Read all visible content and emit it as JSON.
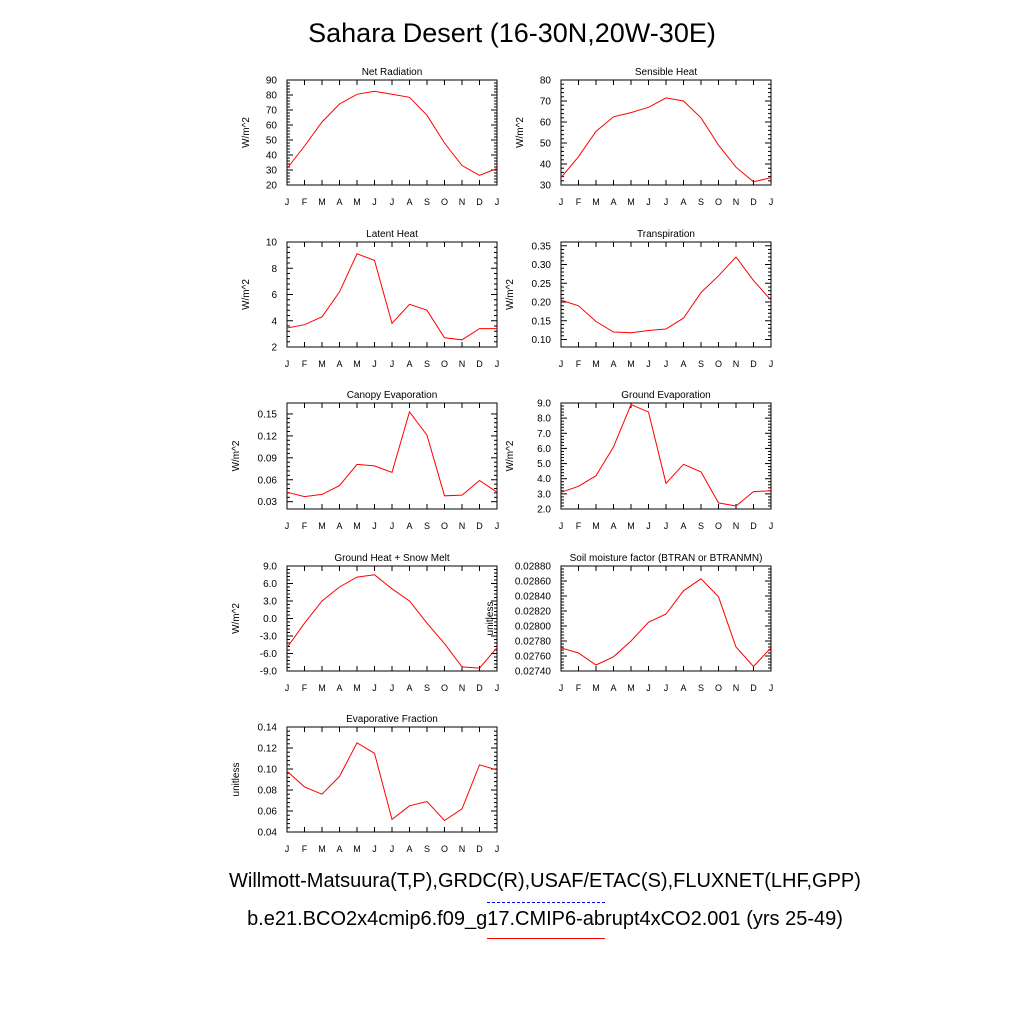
{
  "figure": {
    "title": "Sahara Desert (16-30N,20W-30E)",
    "legend": [
      {
        "label": "Willmott-Matsuura(T,P),GRDC(R),USAF/ETAC(S),FLUXNET(LHF,GPP)",
        "color": "#0000ff",
        "style": "dashed"
      },
      {
        "label": "b.e21.BCO2x4cmip6.f09_g17.CMIP6-abrupt4xCO2.001 (yrs 25-49)",
        "color": "#ff0000",
        "style": "solid"
      }
    ]
  },
  "chart_data": [
    {
      "type": "line",
      "title": "Net Radiation",
      "ylabel": "W/m^2",
      "categories": [
        "J",
        "F",
        "M",
        "A",
        "M",
        "J",
        "J",
        "A",
        "S",
        "O",
        "N",
        "D",
        "J"
      ],
      "ylim": [
        20,
        90
      ],
      "yticks": [
        "20",
        "30",
        "40",
        "50",
        "60",
        "70",
        "80",
        "90"
      ],
      "series": [
        {
          "color": "#ff0000",
          "values": [
            31,
            46,
            62,
            74,
            80.5,
            82.5,
            80.5,
            78.5,
            66.5,
            48,
            33,
            26.5,
            31
          ]
        }
      ]
    },
    {
      "type": "line",
      "title": "Sensible Heat",
      "ylabel": "W/m^2",
      "categories": [
        "J",
        "F",
        "M",
        "A",
        "M",
        "J",
        "J",
        "A",
        "S",
        "O",
        "N",
        "D",
        "J"
      ],
      "ylim": [
        30,
        80
      ],
      "yticks": [
        "30",
        "40",
        "50",
        "60",
        "70",
        "80"
      ],
      "series": [
        {
          "color": "#ff0000",
          "values": [
            33.5,
            43.5,
            55.5,
            62.5,
            64.5,
            67,
            71.5,
            70,
            62,
            49,
            38.5,
            31.5,
            33.5
          ]
        }
      ]
    },
    {
      "type": "line",
      "title": "Latent Heat",
      "ylabel": "W/m^2",
      "categories": [
        "J",
        "F",
        "M",
        "A",
        "M",
        "J",
        "J",
        "A",
        "S",
        "O",
        "N",
        "D",
        "J"
      ],
      "ylim": [
        2,
        10
      ],
      "yticks": [
        "2",
        "4",
        "6",
        "8",
        "10"
      ],
      "series": [
        {
          "color": "#ff0000",
          "values": [
            3.45,
            3.7,
            4.3,
            6.2,
            9.1,
            8.6,
            3.8,
            5.25,
            4.8,
            2.7,
            2.55,
            3.4,
            3.4
          ]
        }
      ]
    },
    {
      "type": "line",
      "title": "Transpiration",
      "ylabel": "W/m^2",
      "categories": [
        "J",
        "F",
        "M",
        "A",
        "M",
        "J",
        "J",
        "A",
        "S",
        "O",
        "N",
        "D",
        "J"
      ],
      "ylim": [
        0.08,
        0.36
      ],
      "yticks": [
        "0.10",
        "0.15",
        "0.20",
        "0.25",
        "0.30",
        "0.35"
      ],
      "series": [
        {
          "color": "#ff0000",
          "values": [
            0.205,
            0.19,
            0.148,
            0.12,
            0.118,
            0.124,
            0.128,
            0.157,
            0.225,
            0.27,
            0.32,
            0.257,
            0.205
          ]
        }
      ]
    },
    {
      "type": "line",
      "title": "Canopy Evaporation",
      "ylabel": "W/m^2",
      "categories": [
        "J",
        "F",
        "M",
        "A",
        "M",
        "J",
        "J",
        "A",
        "S",
        "O",
        "N",
        "D",
        "J"
      ],
      "ylim": [
        0.02,
        0.165
      ],
      "yticks": [
        "0.03",
        "0.06",
        "0.09",
        "0.12",
        "0.15"
      ],
      "series": [
        {
          "color": "#ff0000",
          "values": [
            0.043,
            0.037,
            0.04,
            0.052,
            0.081,
            0.079,
            0.07,
            0.153,
            0.121,
            0.038,
            0.039,
            0.059,
            0.043
          ]
        }
      ]
    },
    {
      "type": "line",
      "title": "Ground Evaporation",
      "ylabel": "W/m^2",
      "categories": [
        "J",
        "F",
        "M",
        "A",
        "M",
        "J",
        "J",
        "A",
        "S",
        "O",
        "N",
        "D",
        "J"
      ],
      "ylim": [
        2.0,
        9.0
      ],
      "yticks": [
        "2.0",
        "3.0",
        "4.0",
        "5.0",
        "6.0",
        "7.0",
        "8.0",
        "9.0"
      ],
      "series": [
        {
          "color": "#ff0000",
          "values": [
            3.1,
            3.5,
            4.2,
            6.1,
            8.9,
            8.4,
            3.7,
            4.95,
            4.45,
            2.4,
            2.2,
            3.15,
            3.2
          ]
        }
      ]
    },
    {
      "type": "line",
      "title": "Ground Heat + Snow Melt",
      "ylabel": "W/m^2",
      "categories": [
        "J",
        "F",
        "M",
        "A",
        "M",
        "J",
        "J",
        "A",
        "S",
        "O",
        "N",
        "D",
        "J"
      ],
      "ylim": [
        -9,
        9
      ],
      "yticks": [
        "-9.0",
        "-6.0",
        "-3.0",
        "0.0",
        "3.0",
        "6.0",
        "9.0"
      ],
      "series": [
        {
          "color": "#ff0000",
          "values": [
            -5,
            -0.8,
            3,
            5.4,
            7.1,
            7.5,
            5.1,
            3,
            -0.8,
            -4.3,
            -8.3,
            -8.5,
            -5
          ]
        }
      ]
    },
    {
      "type": "line",
      "title": "Soil moisture factor (BTRAN or BTRANMN)",
      "ylabel": "unitless",
      "categories": [
        "J",
        "F",
        "M",
        "A",
        "M",
        "J",
        "J",
        "A",
        "S",
        "O",
        "N",
        "D",
        "J"
      ],
      "ylim": [
        0.0274,
        0.0288
      ],
      "yticks": [
        "0.02740",
        "0.02760",
        "0.02780",
        "0.02800",
        "0.02820",
        "0.02840",
        "0.02860",
        "0.02880"
      ],
      "series": [
        {
          "color": "#ff0000",
          "values": [
            0.02771,
            0.02764,
            0.02748,
            0.02759,
            0.0278,
            0.02805,
            0.02816,
            0.02847,
            0.02863,
            0.02839,
            0.02772,
            0.02746,
            0.02771
          ]
        }
      ]
    },
    {
      "type": "line",
      "title": "Evaporative Fraction",
      "ylabel": "unitless",
      "categories": [
        "J",
        "F",
        "M",
        "A",
        "M",
        "J",
        "J",
        "A",
        "S",
        "O",
        "N",
        "D",
        "J"
      ],
      "ylim": [
        0.04,
        0.14
      ],
      "yticks": [
        "0.04",
        "0.06",
        "0.08",
        "0.10",
        "0.12",
        "0.14"
      ],
      "series": [
        {
          "color": "#ff0000",
          "values": [
            0.098,
            0.083,
            0.076,
            0.093,
            0.125,
            0.115,
            0.052,
            0.065,
            0.069,
            0.051,
            0.062,
            0.104,
            0.099
          ]
        }
      ]
    }
  ]
}
